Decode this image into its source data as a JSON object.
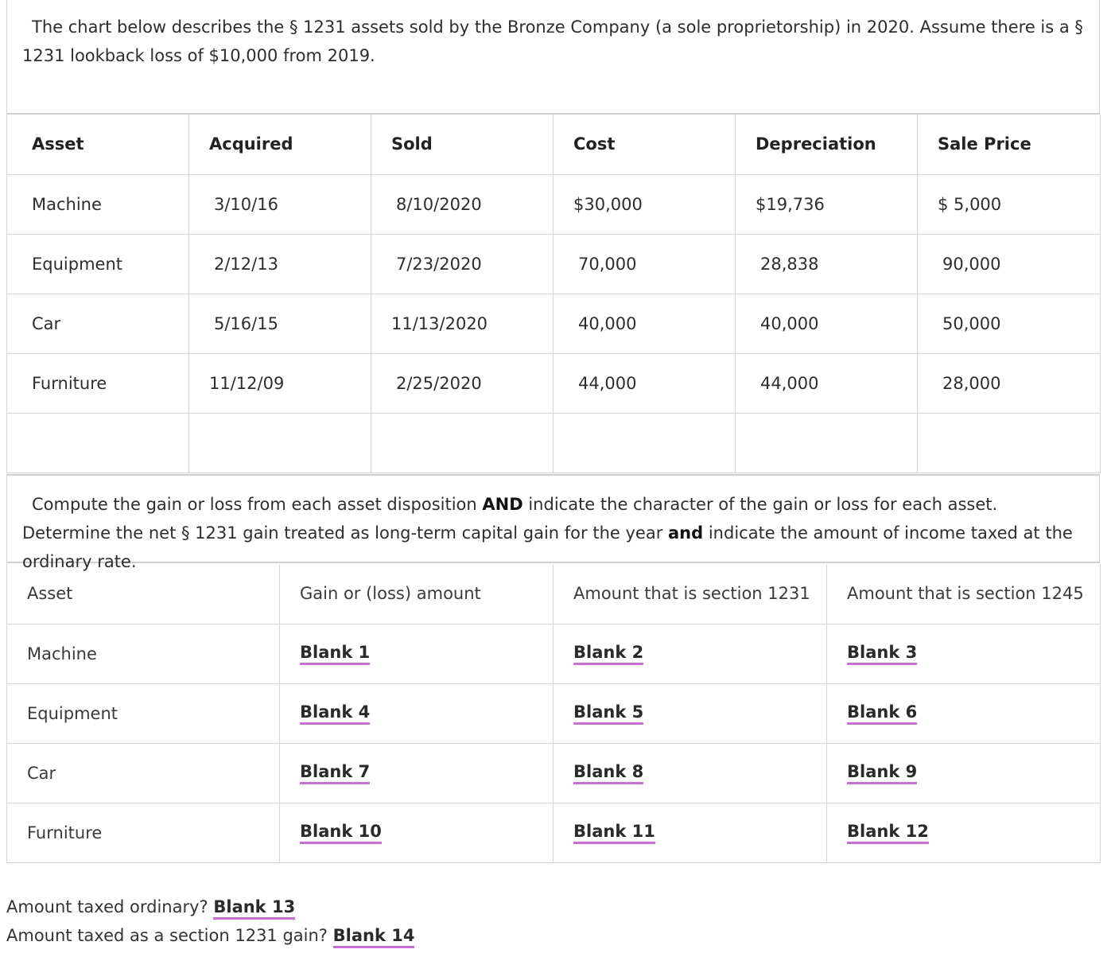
{
  "intro": {
    "text": "The chart below describes the § 1231 assets sold by the Bronze Company (a sole proprietorship) in 2020. Assume there is a § 1231 lookback loss of $10,000 from 2019."
  },
  "asset_table": {
    "headers": [
      "Asset",
      "Acquired",
      "Sold",
      "Cost",
      "Depreciation",
      "Sale Price"
    ],
    "rows": [
      [
        "Machine",
        "3/10/16",
        "8/10/2020",
        "$30,000",
        "$19,736",
        "$ 5,000"
      ],
      [
        "Equipment",
        "2/12/13",
        "7/23/2020",
        "70,000",
        "28,838",
        "90,000"
      ],
      [
        "Car",
        "5/16/15",
        "11/13/2020",
        "40,000",
        "40,000",
        "50,000"
      ],
      [
        "Furniture",
        "11/12/09",
        "2/25/2020",
        "44,000",
        "44,000",
        "28,000"
      ],
      [
        "",
        "",
        "",
        "",
        "",
        ""
      ]
    ]
  },
  "instructions": {
    "part1": "Compute the gain or loss from each asset disposition ",
    "bold1": "AND",
    "part2": " indicate the character of the gain or loss for each asset. Determine the net § 1231 gain treated as long-term capital gain for the year ",
    "bold2": "and",
    "part3": " indicate the amount of income taxed at the ordinary rate."
  },
  "answer_table": {
    "headers": [
      "Asset",
      "Gain or (loss) amount",
      "Amount that is section 1231",
      "Amount that is section 1245"
    ],
    "rows": [
      {
        "asset": "Machine",
        "b1": "Blank 1",
        "b2": "Blank 2",
        "b3": "Blank 3"
      },
      {
        "asset": "Equipment",
        "b1": "Blank 4",
        "b2": "Blank 5",
        "b3": "Blank 6"
      },
      {
        "asset": "Car",
        "b1": "Blank 7",
        "b2": "Blank 8",
        "b3": "Blank 9"
      },
      {
        "asset": "Furniture",
        "b1": "Blank 10",
        "b2": "Blank 11",
        "b3": "Blank 12"
      }
    ]
  },
  "questions": {
    "q13_label": "Amount taxed ordinary?",
    "q13_blank": "Blank 13",
    "q14_label": "Amount taxed as a section 1231 gain?",
    "q14_blank": "Blank 14"
  },
  "colors": {
    "blank_underline": "#c76fd4",
    "border": "#d4d4d4"
  }
}
